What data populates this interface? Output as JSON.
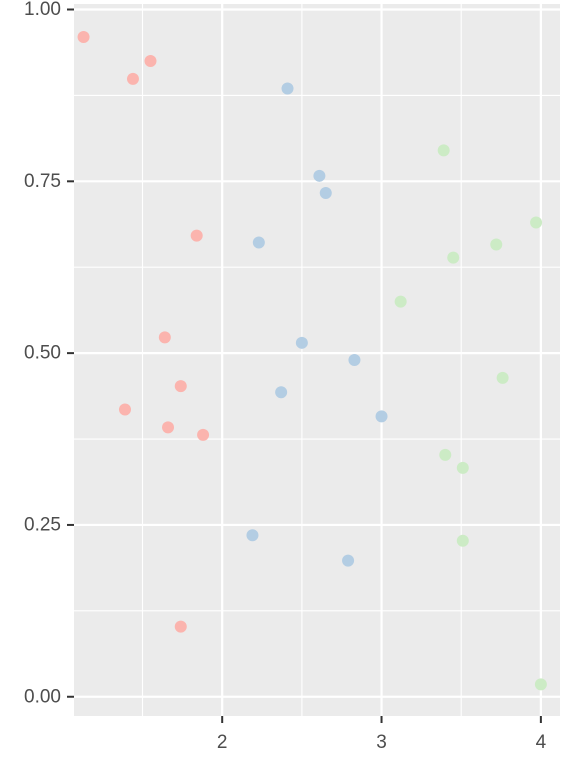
{
  "chart_data": {
    "type": "scatter",
    "title": "",
    "xlabel": "",
    "ylabel": "",
    "xlim": [
      1.07,
      4.12
    ],
    "ylim": [
      -0.028,
      1.008
    ],
    "x_ticks": [
      2,
      3,
      4
    ],
    "x_tick_labels": [
      "2",
      "3",
      "4"
    ],
    "y_ticks": [
      0,
      0.25,
      0.5,
      0.75,
      1.0
    ],
    "y_tick_labels": [
      "0.00",
      "0.25",
      "0.50",
      "0.75",
      "1.00"
    ],
    "grid": true,
    "legend": "none",
    "panel_background": "#ebebeb",
    "grid_color": "#ffffff",
    "series": [
      {
        "color": "#fbb4ae",
        "points": [
          {
            "x": 1.13,
            "y": 0.96
          },
          {
            "x": 1.44,
            "y": 0.899
          },
          {
            "x": 1.55,
            "y": 0.925
          },
          {
            "x": 1.84,
            "y": 0.671
          },
          {
            "x": 1.64,
            "y": 0.523
          },
          {
            "x": 1.74,
            "y": 0.452
          },
          {
            "x": 1.39,
            "y": 0.418
          },
          {
            "x": 1.66,
            "y": 0.392
          },
          {
            "x": 1.88,
            "y": 0.381
          },
          {
            "x": 1.74,
            "y": 0.102
          }
        ]
      },
      {
        "color": "#b3cde3",
        "points": [
          {
            "x": 2.41,
            "y": 0.885
          },
          {
            "x": 2.61,
            "y": 0.758
          },
          {
            "x": 2.65,
            "y": 0.733
          },
          {
            "x": 2.23,
            "y": 0.661
          },
          {
            "x": 2.5,
            "y": 0.515
          },
          {
            "x": 2.83,
            "y": 0.49
          },
          {
            "x": 2.37,
            "y": 0.443
          },
          {
            "x": 3.0,
            "y": 0.408
          },
          {
            "x": 2.19,
            "y": 0.235
          },
          {
            "x": 2.79,
            "y": 0.198
          }
        ]
      },
      {
        "color": "#ccebc5",
        "points": [
          {
            "x": 3.39,
            "y": 0.795
          },
          {
            "x": 3.97,
            "y": 0.69
          },
          {
            "x": 3.72,
            "y": 0.658
          },
          {
            "x": 3.45,
            "y": 0.639
          },
          {
            "x": 3.12,
            "y": 0.575
          },
          {
            "x": 3.76,
            "y": 0.464
          },
          {
            "x": 3.4,
            "y": 0.352
          },
          {
            "x": 3.51,
            "y": 0.333
          },
          {
            "x": 3.51,
            "y": 0.227
          },
          {
            "x": 4.0,
            "y": 0.018
          }
        ]
      }
    ]
  }
}
